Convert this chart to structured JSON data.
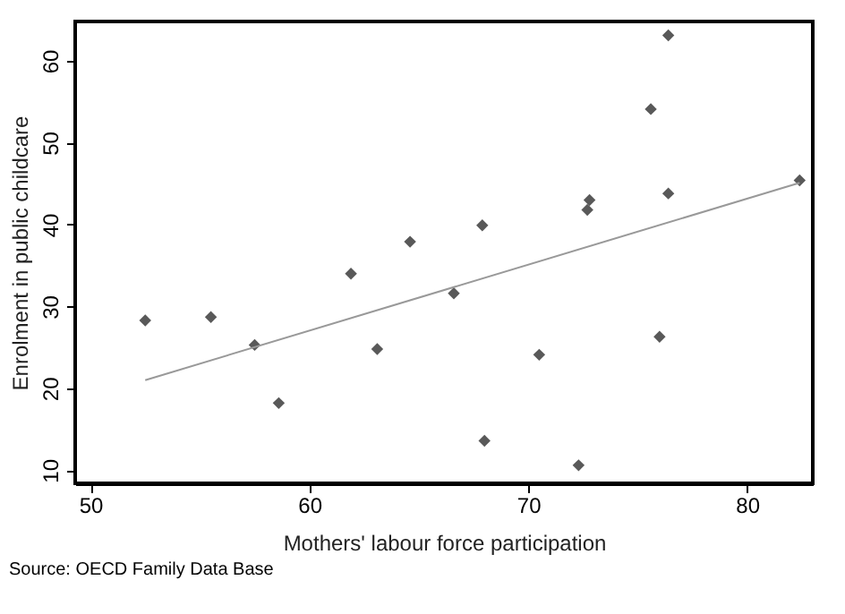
{
  "chart_data": {
    "type": "scatter",
    "xlabel": "Mothers' labour force participation",
    "ylabel": "Enrolment in public childcare",
    "annotations": [
      "Source: OECD Family Data Base"
    ],
    "xlim": [
      49.3,
      83.0
    ],
    "ylim": [
      8.4,
      64.8
    ],
    "xticks": [
      50,
      60,
      70,
      80
    ],
    "yticks": [
      10,
      20,
      30,
      40,
      50,
      60
    ],
    "grid": false,
    "marker": "diamond",
    "series": [
      {
        "color": "#595959",
        "x": [
          52.5,
          55.5,
          57.5,
          58.6,
          61.9,
          63.1,
          64.6,
          66.6,
          67.9,
          68.0,
          70.5,
          72.3,
          72.7,
          72.8,
          75.6,
          76.0,
          76.4,
          76.4,
          82.4
        ],
        "values": [
          28.3,
          28.7,
          25.3,
          18.2,
          34.0,
          24.8,
          37.9,
          31.6,
          39.9,
          13.6,
          24.1,
          10.6,
          41.8,
          43.0,
          54.1,
          26.3,
          43.8,
          63.1,
          45.4
        ]
      },
      {
        "type": "line",
        "color": "#999999",
        "marker": "none",
        "x": [
          52.5,
          82.4
        ],
        "values": [
          21.0,
          45.1
        ]
      }
    ]
  }
}
